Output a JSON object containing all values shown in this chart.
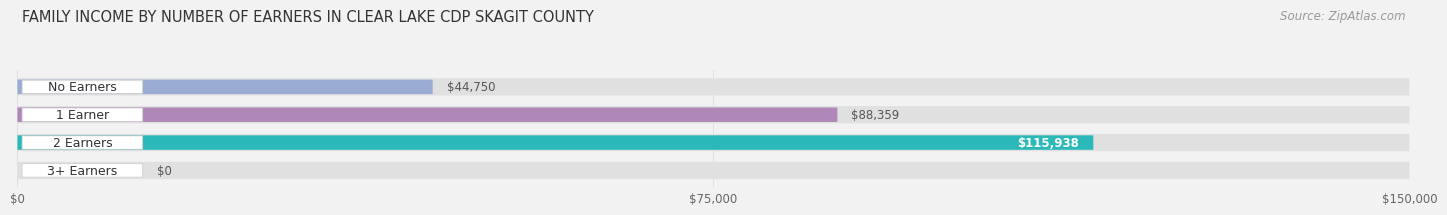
{
  "title": "FAMILY INCOME BY NUMBER OF EARNERS IN CLEAR LAKE CDP SKAGIT COUNTY",
  "source": "Source: ZipAtlas.com",
  "categories": [
    "No Earners",
    "1 Earner",
    "2 Earners",
    "3+ Earners"
  ],
  "values": [
    44750,
    88359,
    115938,
    0
  ],
  "bar_colors": [
    "#9aacd4",
    "#b088b8",
    "#2ab8b8",
    "#9aacd4"
  ],
  "label_colors": [
    "#333333",
    "#333333",
    "#ffffff",
    "#333333"
  ],
  "xlim": [
    0,
    150000
  ],
  "xtick_values": [
    0,
    75000,
    150000
  ],
  "xtick_labels": [
    "$0",
    "$75,000",
    "$150,000"
  ],
  "background_color": "#f2f2f2",
  "bar_background": "#e0e0e0",
  "title_fontsize": 10.5,
  "source_fontsize": 8.5,
  "bar_label_fontsize": 8.5,
  "category_fontsize": 9
}
